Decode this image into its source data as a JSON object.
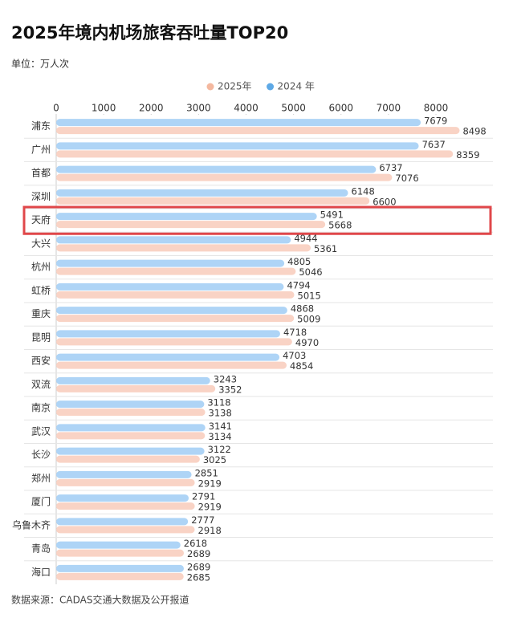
{
  "chart_data": {
    "type": "hbar",
    "title": "2025年境内机场旅客吞吐量TOP20",
    "subtitle": "单位：万人次",
    "source": "数据来源：CADAS交通大数据及公开报道",
    "categories": [
      "浦东",
      "广州",
      "首都",
      "深圳",
      "天府",
      "大兴",
      "杭州",
      "虹桥",
      "重庆",
      "昆明",
      "西安",
      "双流",
      "南京",
      "武汉",
      "长沙",
      "郑州",
      "厦门",
      "乌鲁木齐",
      "青岛",
      "海口"
    ],
    "series": [
      {
        "name": "2025年",
        "color": "#f9d3c5",
        "legend_color": "#f4b89f",
        "values": [
          8498,
          8359,
          7076,
          6600,
          5668,
          5361,
          5046,
          5015,
          5009,
          4970,
          4854,
          3352,
          3138,
          3134,
          3025,
          2919,
          2919,
          2918,
          2689,
          2685
        ]
      },
      {
        "name": "2024 年",
        "color": "#aed4f6",
        "legend_color": "#5ea9e6",
        "values": [
          7679,
          7637,
          6737,
          6148,
          5491,
          4944,
          4805,
          4794,
          4868,
          4718,
          4703,
          3243,
          3118,
          3141,
          3122,
          2851,
          2791,
          2777,
          2618,
          2689
        ]
      }
    ],
    "xlim": [
      0,
      9200
    ],
    "xticks": [
      0,
      1000,
      2000,
      3000,
      4000,
      5000,
      6000,
      7000,
      8000
    ],
    "highlight": "天府",
    "highlight_color": "#e0474a"
  }
}
